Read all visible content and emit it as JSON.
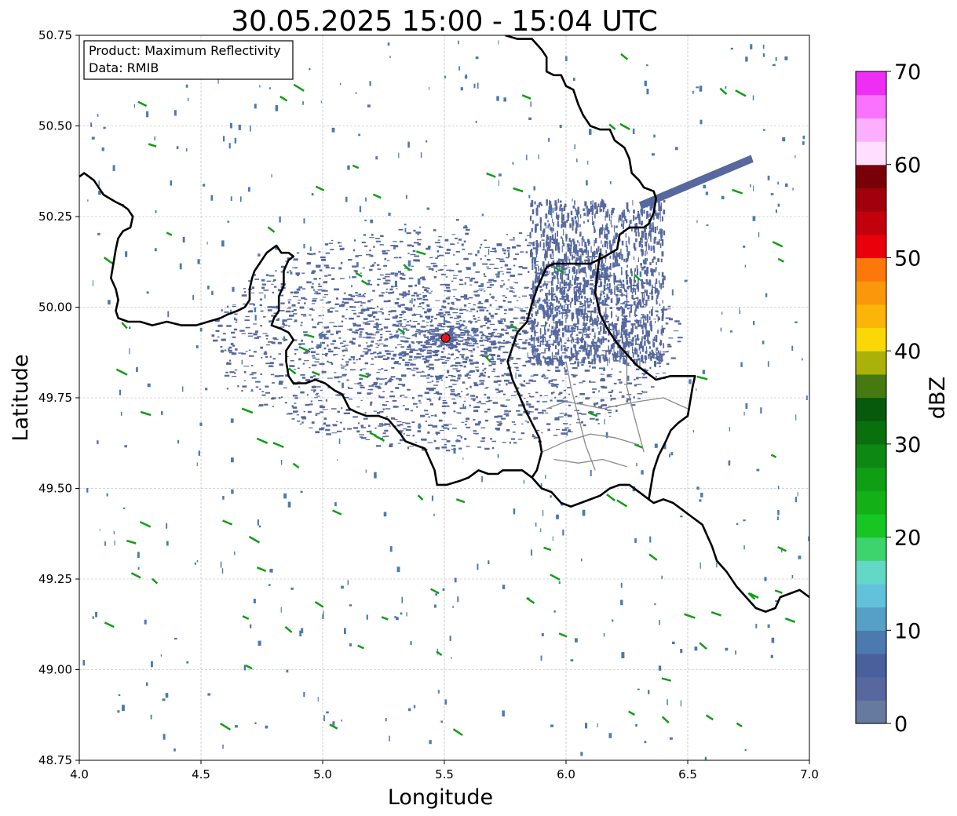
{
  "title": "30.05.2025 15:00 - 15:04 UTC",
  "xlabel": "Longitude",
  "ylabel": "Latitude",
  "info": {
    "product": "Product: Maximum Reflectivity",
    "data": "Data: RMIB"
  },
  "x_ticks": [
    "4.0",
    "4.5",
    "5.0",
    "5.5",
    "6.0",
    "6.5",
    "7.0"
  ],
  "y_ticks": [
    "50.75",
    "50.50",
    "50.25",
    "50.00",
    "49.75",
    "49.50",
    "49.25",
    "49.00",
    "48.75"
  ],
  "x_range": [
    4.0,
    7.0
  ],
  "y_range": [
    48.75,
    50.75
  ],
  "radar_site": {
    "lon": 5.505,
    "lat": 49.915,
    "color": "#e8141c"
  },
  "colorbar": {
    "label": "dBZ",
    "range": [
      0,
      70
    ],
    "ticks": [
      "0",
      "10",
      "20",
      "30",
      "40",
      "50",
      "60",
      "70"
    ],
    "colors": [
      "#66799f",
      "#56689e",
      "#49609d",
      "#4a7ab0",
      "#57a0c5",
      "#62c2dc",
      "#63d8c5",
      "#3ed46d",
      "#17c523",
      "#13b018",
      "#0f9e14",
      "#0d8812",
      "#0a700e",
      "#075a0b",
      "#467a10",
      "#aab20a",
      "#fad807",
      "#fbb408",
      "#fb970a",
      "#fc780a",
      "#e8000b",
      "#c2000b",
      "#a0000b",
      "#7a0008",
      "#fee0fe",
      "#fdafff",
      "#fb72fe",
      "#ee2ef5"
    ]
  },
  "borders": [
    [
      [
        4.0,
        50.36
      ],
      [
        4.02,
        50.37
      ],
      [
        4.06,
        50.35
      ],
      [
        4.1,
        50.31
      ],
      [
        4.15,
        50.29
      ],
      [
        4.18,
        50.28
      ],
      [
        4.2,
        50.27
      ],
      [
        4.22,
        50.25
      ],
      [
        4.21,
        50.22
      ],
      [
        4.18,
        50.21
      ],
      [
        4.16,
        50.19
      ],
      [
        4.15,
        50.16
      ],
      [
        4.14,
        50.12
      ],
      [
        4.13,
        50.08
      ],
      [
        4.15,
        50.05
      ],
      [
        4.16,
        50.02
      ],
      [
        4.15,
        49.99
      ],
      [
        4.16,
        49.97
      ],
      [
        4.2,
        49.96
      ],
      [
        4.25,
        49.96
      ],
      [
        4.3,
        49.95
      ],
      [
        4.36,
        49.96
      ],
      [
        4.42,
        49.95
      ],
      [
        4.48,
        49.95
      ],
      [
        4.53,
        49.96
      ],
      [
        4.58,
        49.97
      ],
      [
        4.61,
        49.98
      ],
      [
        4.65,
        49.99
      ],
      [
        4.68,
        50.0
      ],
      [
        4.7,
        50.02
      ],
      [
        4.7,
        50.05
      ],
      [
        4.71,
        50.08
      ],
      [
        4.72,
        50.1
      ],
      [
        4.74,
        50.12
      ],
      [
        4.77,
        50.15
      ],
      [
        4.79,
        50.16
      ],
      [
        4.81,
        50.17
      ],
      [
        4.83,
        50.15
      ],
      [
        4.86,
        50.15
      ],
      [
        4.88,
        50.14
      ],
      [
        4.86,
        50.13
      ],
      [
        4.84,
        50.1
      ],
      [
        4.84,
        50.06
      ],
      [
        4.82,
        50.03
      ],
      [
        4.82,
        49.99
      ],
      [
        4.8,
        49.97
      ],
      [
        4.79,
        49.95
      ],
      [
        4.83,
        49.94
      ],
      [
        4.86,
        49.93
      ],
      [
        4.88,
        49.91
      ],
      [
        4.85,
        49.88
      ],
      [
        4.85,
        49.85
      ],
      [
        4.86,
        49.81
      ],
      [
        4.88,
        49.79
      ],
      [
        4.93,
        49.79
      ],
      [
        4.97,
        49.8
      ],
      [
        5.01,
        49.79
      ],
      [
        5.05,
        49.77
      ],
      [
        5.08,
        49.76
      ],
      [
        5.11,
        49.72
      ],
      [
        5.14,
        49.71
      ],
      [
        5.18,
        49.7
      ],
      [
        5.23,
        49.7
      ],
      [
        5.27,
        49.69
      ],
      [
        5.32,
        49.65
      ],
      [
        5.34,
        49.63
      ],
      [
        5.38,
        49.62
      ],
      [
        5.42,
        49.61
      ],
      [
        5.44,
        49.58
      ],
      [
        5.46,
        49.55
      ],
      [
        5.47,
        49.51
      ],
      [
        5.51,
        49.51
      ],
      [
        5.56,
        49.52
      ],
      [
        5.6,
        49.53
      ],
      [
        5.64,
        49.55
      ],
      [
        5.68,
        49.54
      ],
      [
        5.72,
        49.54
      ],
      [
        5.74,
        49.55
      ],
      [
        5.78,
        49.55
      ],
      [
        5.82,
        49.55
      ],
      [
        5.86,
        49.53
      ],
      [
        5.9,
        49.5
      ],
      [
        5.94,
        49.49
      ],
      [
        5.98,
        49.46
      ],
      [
        6.02,
        49.45
      ],
      [
        6.06,
        49.46
      ],
      [
        6.1,
        49.47
      ],
      [
        6.14,
        49.48
      ],
      [
        6.18,
        49.5
      ],
      [
        6.22,
        49.51
      ],
      [
        6.26,
        49.51
      ],
      [
        6.3,
        49.49
      ],
      [
        6.34,
        49.47
      ],
      [
        6.36,
        49.46
      ],
      [
        6.4,
        49.47
      ],
      [
        6.44,
        49.46
      ],
      [
        6.48,
        49.44
      ],
      [
        6.52,
        49.42
      ],
      [
        6.56,
        49.4
      ],
      [
        6.58,
        49.37
      ],
      [
        6.6,
        49.34
      ],
      [
        6.62,
        49.3
      ],
      [
        6.66,
        49.27
      ],
      [
        6.7,
        49.23
      ],
      [
        6.74,
        49.2
      ],
      [
        6.78,
        49.17
      ],
      [
        6.82,
        49.16
      ],
      [
        6.86,
        49.17
      ],
      [
        6.88,
        49.2
      ],
      [
        6.92,
        49.21
      ],
      [
        6.96,
        49.22
      ],
      [
        7.0,
        49.2
      ]
    ],
    [
      [
        5.75,
        50.75
      ],
      [
        5.8,
        50.74
      ],
      [
        5.86,
        50.74
      ],
      [
        5.9,
        50.71
      ],
      [
        5.92,
        50.69
      ],
      [
        5.92,
        50.65
      ],
      [
        5.95,
        50.64
      ],
      [
        5.98,
        50.64
      ],
      [
        6.0,
        50.61
      ],
      [
        6.03,
        50.6
      ],
      [
        6.05,
        50.56
      ],
      [
        6.07,
        50.53
      ],
      [
        6.1,
        50.5
      ],
      [
        6.14,
        50.49
      ],
      [
        6.18,
        50.49
      ],
      [
        6.2,
        50.46
      ],
      [
        6.24,
        50.44
      ],
      [
        6.26,
        50.41
      ],
      [
        6.27,
        50.37
      ],
      [
        6.3,
        50.35
      ],
      [
        6.32,
        50.33
      ],
      [
        6.36,
        50.32
      ],
      [
        6.37,
        50.3
      ],
      [
        6.36,
        50.26
      ],
      [
        6.34,
        50.23
      ],
      [
        6.32,
        50.22
      ],
      [
        6.26,
        50.22
      ],
      [
        6.22,
        50.2
      ],
      [
        6.21,
        50.16
      ],
      [
        6.16,
        50.14
      ],
      [
        6.13,
        50.13
      ],
      [
        6.1,
        50.12
      ],
      [
        6.05,
        50.12
      ],
      [
        5.98,
        50.12
      ],
      [
        5.95,
        50.12
      ],
      [
        5.92,
        50.11
      ],
      [
        5.9,
        50.08
      ],
      [
        5.88,
        50.05
      ],
      [
        5.86,
        50.01
      ],
      [
        5.84,
        49.96
      ],
      [
        5.8,
        49.93
      ],
      [
        5.78,
        49.89
      ],
      [
        5.76,
        49.85
      ],
      [
        5.78,
        49.8
      ],
      [
        5.8,
        49.77
      ],
      [
        5.83,
        49.72
      ],
      [
        5.86,
        49.68
      ],
      [
        5.89,
        49.64
      ],
      [
        5.9,
        49.6
      ],
      [
        5.88,
        49.55
      ],
      [
        5.86,
        49.53
      ]
    ],
    [
      [
        6.14,
        50.15
      ],
      [
        6.13,
        50.1
      ],
      [
        6.12,
        50.04
      ],
      [
        6.14,
        49.98
      ],
      [
        6.17,
        49.94
      ],
      [
        6.21,
        49.9
      ],
      [
        6.25,
        49.87
      ],
      [
        6.29,
        49.84
      ],
      [
        6.33,
        49.82
      ],
      [
        6.37,
        49.8
      ],
      [
        6.43,
        49.81
      ],
      [
        6.49,
        49.81
      ],
      [
        6.53,
        49.81
      ],
      [
        6.52,
        49.78
      ],
      [
        6.51,
        49.74
      ],
      [
        6.5,
        49.7
      ],
      [
        6.46,
        49.68
      ],
      [
        6.43,
        49.66
      ],
      [
        6.41,
        49.63
      ],
      [
        6.38,
        49.59
      ],
      [
        6.36,
        49.55
      ],
      [
        6.35,
        49.51
      ],
      [
        6.34,
        49.47
      ]
    ]
  ]
}
